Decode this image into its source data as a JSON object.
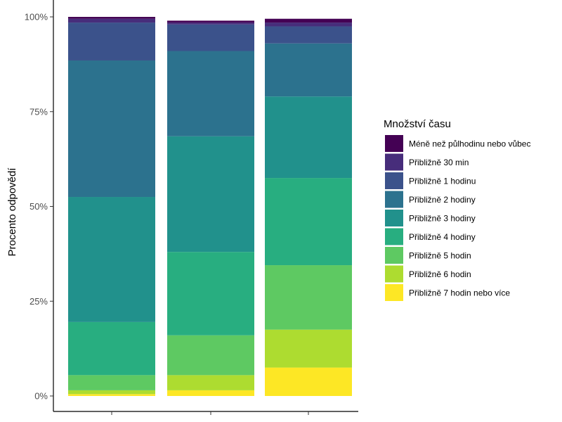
{
  "chart_data": {
    "type": "bar",
    "stacked": true,
    "normalized": true,
    "orientation": "vertical",
    "title": "",
    "xlabel": "",
    "ylabel": "Procento odpovědí",
    "ylim": [
      0,
      1
    ],
    "yticks": [
      {
        "value": 0,
        "label": "0%"
      },
      {
        "value": 0.25,
        "label": "25%"
      },
      {
        "value": 0.5,
        "label": "50%"
      },
      {
        "value": 0.75,
        "label": "75%"
      },
      {
        "value": 1,
        "label": "100%"
      }
    ],
    "categories": [
      "",
      "",
      ""
    ],
    "grid": false,
    "legend": {
      "title": "Množství času",
      "position": "right"
    },
    "series": [
      {
        "name": "Méně než půlhodinu nebo vůbec",
        "color": "#440154",
        "values": [
          0.005,
          0.005,
          0.01
        ]
      },
      {
        "name": "Přibližně 30 min",
        "color": "#472d7b",
        "values": [
          0.01,
          0.005,
          0.01
        ]
      },
      {
        "name": "Přibližně 1 hodinu",
        "color": "#3b528b",
        "values": [
          0.1,
          0.07,
          0.045
        ]
      },
      {
        "name": "Přibližně 2 hodiny",
        "color": "#2c728e",
        "values": [
          0.36,
          0.225,
          0.14
        ]
      },
      {
        "name": "Přibližně 3 hodiny",
        "color": "#21918c",
        "values": [
          0.33,
          0.305,
          0.215
        ]
      },
      {
        "name": "Přibližně 4 hodiny",
        "color": "#28ae80",
        "values": [
          0.14,
          0.22,
          0.23
        ]
      },
      {
        "name": "Přibližně 5 hodin",
        "color": "#5ec962",
        "values": [
          0.04,
          0.105,
          0.17
        ]
      },
      {
        "name": "Přibližně 6 hodin",
        "color": "#addc30",
        "values": [
          0.01,
          0.04,
          0.1
        ]
      },
      {
        "name": "Přibližně 7 hodin nebo více",
        "color": "#fde725",
        "values": [
          0.005,
          0.015,
          0.075
        ]
      }
    ]
  }
}
